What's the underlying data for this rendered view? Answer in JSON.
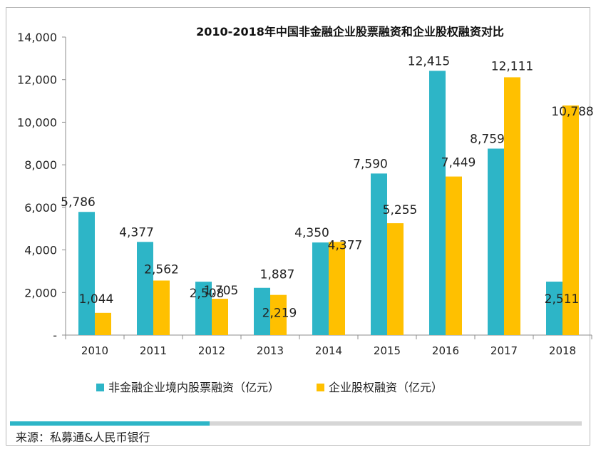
{
  "chart_data": {
    "type": "bar",
    "title": "2010-2018年中国非金融企业股票融资和企业股权融资对比",
    "categories": [
      "2010",
      "2011",
      "2012",
      "2013",
      "2014",
      "2015",
      "2016",
      "2017",
      "2018"
    ],
    "series": [
      {
        "name": "非金融企业境内股票融资（亿元）",
        "color": "#2db5c7",
        "values": [
          5786,
          4377,
          2508,
          2219,
          4350,
          7590,
          12415,
          8759,
          2511
        ]
      },
      {
        "name": "企业股权融资（亿元）",
        "color": "#ffc000",
        "values": [
          1044,
          2562,
          1705,
          1887,
          4377,
          5255,
          7449,
          12111,
          10788
        ]
      }
    ],
    "ylim": [
      0,
      14000
    ],
    "yticks": [
      0,
      2000,
      4000,
      6000,
      8000,
      10000,
      12000,
      14000
    ],
    "ytick_labels": [
      "-",
      "2,000",
      "4,000",
      "6,000",
      "8,000",
      "10,000",
      "12,000",
      "14,000"
    ],
    "data_labels": {
      "s0": [
        "5,786",
        "4,377",
        "2,508",
        "2,219",
        "4,350",
        "7,590",
        "12,415",
        "8,759",
        "2,511"
      ],
      "s1": [
        "1,044",
        "2,562",
        "1,705",
        "1,887",
        "4,377",
        "5,255",
        "7,449",
        "12,111",
        "10,788"
      ]
    },
    "legend_position": "bottom",
    "grid": false
  },
  "source": "来源：私募通&人民币银行"
}
